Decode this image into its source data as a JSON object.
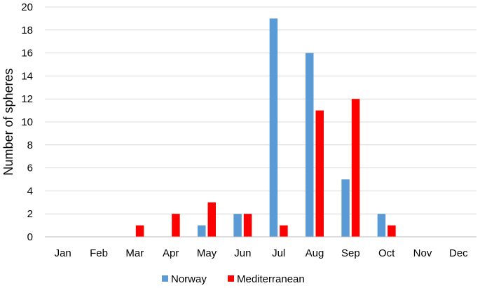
{
  "chart_data": {
    "type": "bar",
    "title": "",
    "xlabel": "",
    "ylabel": "Number of spheres",
    "ylim": [
      0,
      20
    ],
    "yticks": [
      0,
      2,
      4,
      6,
      8,
      10,
      12,
      14,
      16,
      18,
      20
    ],
    "grid": true,
    "legend_position": "bottom",
    "categories": [
      "Jan",
      "Feb",
      "Mar",
      "Apr",
      "May",
      "Jun",
      "Jul",
      "Aug",
      "Sep",
      "Oct",
      "Nov",
      "Dec"
    ],
    "series": [
      {
        "name": "Norway",
        "color": "#5b9bd5",
        "values": [
          0,
          0,
          0,
          0,
          1,
          2,
          19,
          16,
          5,
          2,
          0,
          0
        ]
      },
      {
        "name": "Mediterranean",
        "color": "#ff0000",
        "values": [
          0,
          0,
          1,
          2,
          3,
          2,
          1,
          11,
          12,
          1,
          0,
          0
        ]
      }
    ]
  }
}
